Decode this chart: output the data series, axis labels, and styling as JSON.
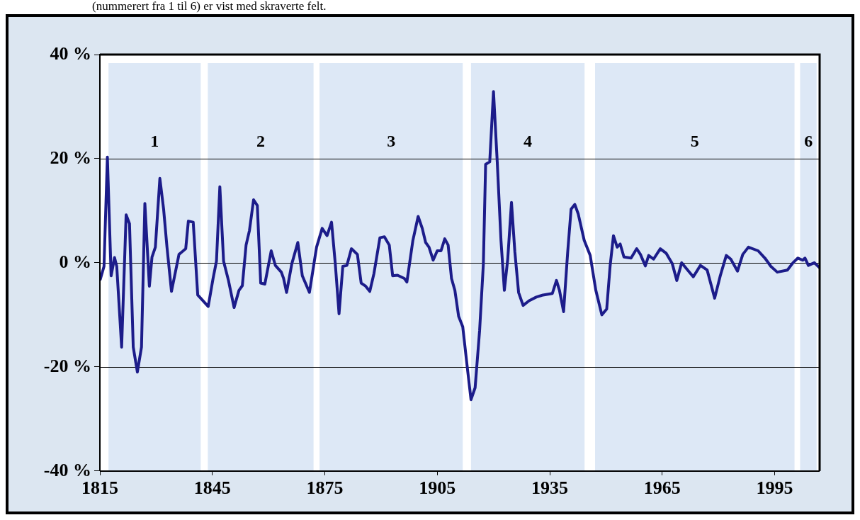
{
  "chart_data": {
    "type": "line",
    "x": [
      1815.1,
      1816.1,
      1817.0,
      1818.0,
      1818.9,
      1819.5,
      1820.8,
      1822.0,
      1822.9,
      1823.9,
      1825.0,
      1826.1,
      1827.0,
      1828.2,
      1828.9,
      1829.8,
      1831.0,
      1832.0,
      1832.9,
      1834.1,
      1836.1,
      1837.9,
      1838.6,
      1839.9,
      1841.1,
      1843.9,
      1845.2,
      1846.1,
      1847.0,
      1848.0,
      1849.3,
      1850.8,
      1852.1,
      1853.0,
      1854.0,
      1854.9,
      1856.0,
      1857.0,
      1857.9,
      1859.0,
      1860.7,
      1861.8,
      1863.4,
      1864.0,
      1864.8,
      1866.2,
      1867.8,
      1869.0,
      1870.9,
      1872.8,
      1874.3,
      1875.6,
      1876.8,
      1877.8,
      1878.8,
      1879.8,
      1880.9,
      1882.1,
      1883.7,
      1884.7,
      1885.9,
      1887.0,
      1888.1,
      1889.7,
      1890.9,
      1892.2,
      1893.1,
      1894.4,
      1896.2,
      1896.9,
      1898.5,
      1899.9,
      1901.0,
      1901.9,
      1902.8,
      1903.9,
      1905.0,
      1906.0,
      1907.0,
      1907.9,
      1908.8,
      1909.7,
      1910.7,
      1911.8,
      1912.9,
      1914.0,
      1915.1,
      1916.3,
      1917.3,
      1917.9,
      1919.0,
      1920.0,
      1921.0,
      1922.0,
      1922.9,
      1923.8,
      1924.8,
      1925.7,
      1926.7,
      1927.9,
      1929.5,
      1931.4,
      1933.2,
      1935.7,
      1936.8,
      1937.6,
      1938.7,
      1939.8,
      1940.7,
      1941.7,
      1942.6,
      1944.2,
      1945.8,
      1947.3,
      1948.9,
      1950.2,
      1951.1,
      1952.0,
      1953.0,
      1953.8,
      1954.8,
      1956.7,
      1958.2,
      1959.2,
      1960.5,
      1961.4,
      1962.7,
      1964.5,
      1966.1,
      1967.7,
      1968.9,
      1970.2,
      1971.8,
      1973.3,
      1975.2,
      1977.0,
      1979.0,
      1980.5,
      1982.1,
      1983.3,
      1985.1,
      1986.5,
      1988.0,
      1990.6,
      1992.4,
      1994.0,
      1995.7,
      1998.4,
      1999.9,
      2001.2,
      2002.5,
      2003.1,
      2004.0,
      2005.6,
      2006.9
    ],
    "series": [
      {
        "color": "#1c1c8a",
        "values": [
          -3.2,
          -0.7,
          20.3,
          -2.5,
          1.0,
          -0.7,
          -16.2,
          9.2,
          7.5,
          -16.2,
          -21.0,
          -16.2,
          11.4,
          -4.5,
          1.1,
          3.0,
          16.2,
          10.3,
          3.0,
          -5.5,
          1.6,
          2.7,
          8.0,
          7.8,
          -6.2,
          -8.4,
          -3.0,
          0.3,
          14.6,
          0.3,
          -3.4,
          -8.6,
          -5.3,
          -4.4,
          3.4,
          6.2,
          12.1,
          11.0,
          -3.9,
          -4.1,
          2.3,
          -0.5,
          -1.8,
          -3.0,
          -5.7,
          -0.2,
          3.9,
          -2.5,
          -5.7,
          3.0,
          6.6,
          5.2,
          7.8,
          -0.2,
          -9.8,
          -0.7,
          -0.5,
          2.7,
          1.6,
          -3.9,
          -4.5,
          -5.5,
          -2.1,
          4.8,
          5.0,
          3.4,
          -2.5,
          -2.4,
          -3.0,
          -3.7,
          4.3,
          8.9,
          6.6,
          3.9,
          3.0,
          0.5,
          2.3,
          2.3,
          4.6,
          3.4,
          -3.0,
          -5.3,
          -10.3,
          -12.3,
          -19.4,
          -26.3,
          -24.0,
          -13.0,
          -0.2,
          18.9,
          19.4,
          32.9,
          19.4,
          4.3,
          -5.3,
          0.7,
          11.6,
          2.1,
          -5.7,
          -8.2,
          -7.3,
          -6.6,
          -6.2,
          -5.9,
          -3.4,
          -5.3,
          -9.4,
          2.1,
          10.3,
          11.2,
          9.4,
          4.3,
          1.4,
          -5.3,
          -10.0,
          -8.9,
          -0.7,
          5.2,
          3.0,
          3.6,
          1.1,
          0.9,
          2.7,
          1.6,
          -0.6,
          1.4,
          0.7,
          2.7,
          1.8,
          -0.2,
          -3.4,
          0.0,
          -1.4,
          -2.7,
          -0.5,
          -1.4,
          -6.8,
          -2.5,
          1.4,
          0.7,
          -1.6,
          1.6,
          3.0,
          2.3,
          0.9,
          -0.7,
          -1.8,
          -1.4,
          0.0,
          0.9,
          0.5,
          0.9,
          -0.5,
          0.0,
          -0.9
        ]
      }
    ],
    "xlim": [
      1815,
      2007
    ],
    "xticks": [
      1815,
      1845,
      1875,
      1905,
      1935,
      1965,
      1995
    ],
    "ylim": [
      -40,
      40
    ],
    "yticks": [
      {
        "value": -40,
        "label": "-40 %"
      },
      {
        "value": -20,
        "label": "-20 %"
      },
      {
        "value": 0,
        "label": "0 %"
      },
      {
        "value": 20,
        "label": "20 %"
      },
      {
        "value": 40,
        "label": "40 %"
      }
    ],
    "grid": "y",
    "marker": "none",
    "bands": [
      {
        "axis": "x",
        "from": 1817.3,
        "to": 1841.9,
        "label": "1",
        "color": "#dde8f6"
      },
      {
        "axis": "x",
        "from": 1843.8,
        "to": 1872.0,
        "label": "2",
        "color": "#dde8f6"
      },
      {
        "axis": "x",
        "from": 1873.6,
        "to": 1911.8,
        "label": "3",
        "color": "#dde8f6"
      },
      {
        "axis": "x",
        "from": 1914.0,
        "to": 1944.3,
        "label": "4",
        "color": "#dde8f6"
      },
      {
        "axis": "x",
        "from": 1947.1,
        "to": 2000.3,
        "label": "5",
        "color": "#dde8f6"
      },
      {
        "axis": "x",
        "from": 2001.8,
        "to": 2006.2,
        "label": "6",
        "color": "#dde8f6"
      }
    ],
    "annotations": [
      "(nummerert fra 1 til 6) er vist med skraverte felt."
    ]
  }
}
